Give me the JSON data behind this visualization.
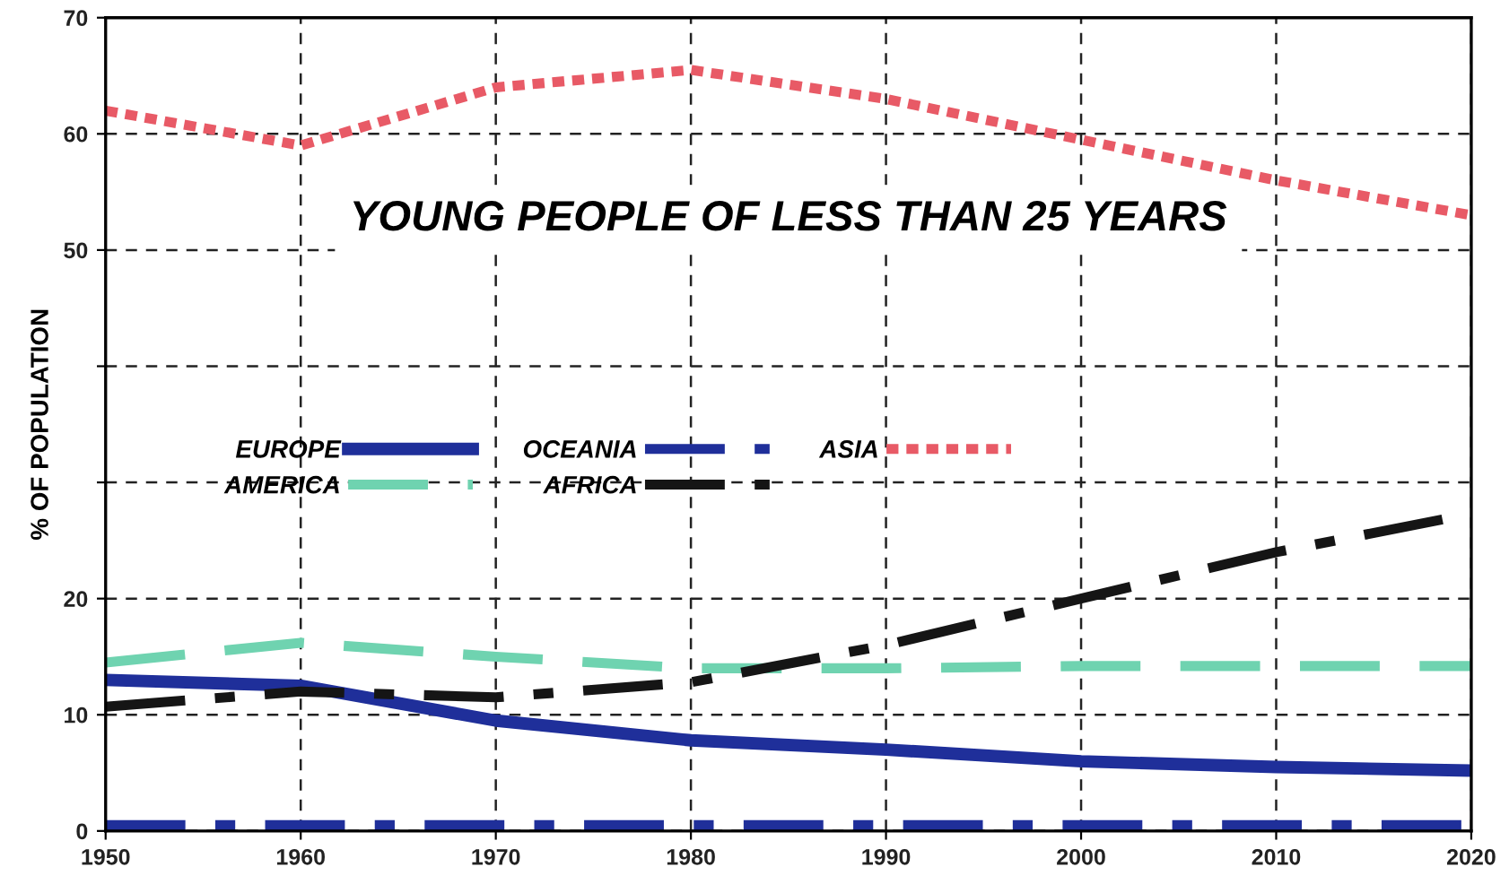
{
  "chart_data": {
    "type": "line",
    "title": "YOUNG PEOPLE OF LESS THAN 25 YEARS",
    "ylabel": "% OF POPULATION",
    "x": [
      1950,
      1960,
      1970,
      1980,
      1990,
      2000,
      2010,
      2020
    ],
    "series": [
      {
        "name": "EUROPE",
        "color": "#1f2f9a",
        "line_style": "solid",
        "values": [
          13,
          12.5,
          9.5,
          7.8,
          7,
          6,
          5.5,
          5.2
        ]
      },
      {
        "name": "AMERICA",
        "color": "#6fd3b0",
        "line_style": "dashed",
        "values": [
          14.5,
          16.2,
          15,
          14,
          14,
          14.2,
          14.2,
          14.2
        ]
      },
      {
        "name": "OCEANIA",
        "color": "#1f2f9a",
        "line_style": "dashdot",
        "values": [
          0.5,
          0.5,
          0.5,
          0.5,
          0.5,
          0.5,
          0.5,
          0.5
        ]
      },
      {
        "name": "AFRICA",
        "color": "#151515",
        "line_style": "dashdot",
        "values": [
          10.7,
          12,
          11.5,
          12.8,
          16,
          20,
          24,
          27.3
        ]
      },
      {
        "name": "ASIA",
        "color": "#e85a66",
        "line_style": "dotted",
        "values": [
          62,
          59,
          64,
          65.5,
          63,
          59.5,
          56,
          53
        ]
      }
    ],
    "xlim": [
      1950,
      2020
    ],
    "xticks": [
      1950,
      1960,
      1970,
      1980,
      1990,
      2000,
      2010,
      2020
    ],
    "ylim": [
      0,
      70
    ],
    "yticks": [
      0,
      10,
      20,
      {
        "value": 30,
        "label": null
      },
      {
        "value": 40,
        "label": null
      },
      50,
      60,
      70
    ],
    "grid": true,
    "legend": "center"
  }
}
